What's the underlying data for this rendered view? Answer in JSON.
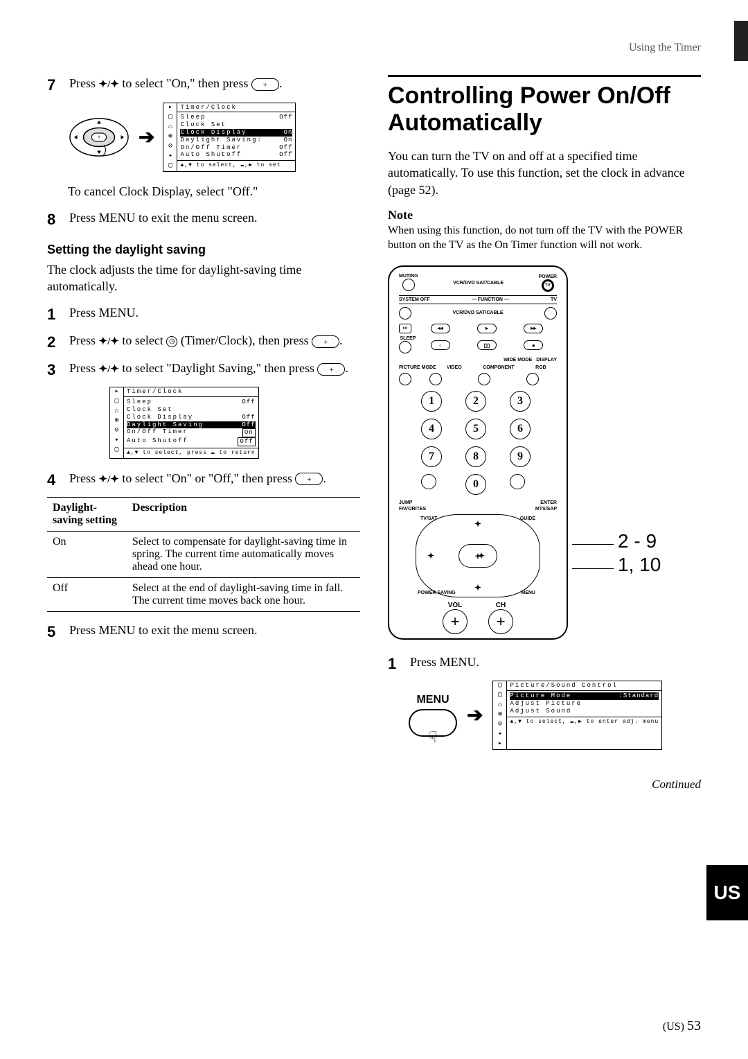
{
  "header": {
    "section": "Using the Timer"
  },
  "left": {
    "step7": {
      "num": "7",
      "text_a": "Press ",
      "text_b": " to select \"On,\" then press ",
      "text_c": "."
    },
    "menu1": {
      "title": "Timer/Clock",
      "rows": [
        {
          "k": "Sleep",
          "v": "Off",
          "hl": false
        },
        {
          "k": "Clock Set",
          "v": "",
          "hl": false
        },
        {
          "k": "Clock Display",
          "v": "On",
          "hl": true
        },
        {
          "k": "Daylight Saving:",
          "v": "On",
          "hl": false
        },
        {
          "k": "On/Off Timer",
          "v": "Off",
          "hl": false
        },
        {
          "k": "Auto Shutoff",
          "v": "Off",
          "hl": false
        }
      ],
      "foot": "▲,▼ to select, ▬,▶ to set"
    },
    "cancel_line": "To cancel Clock Display, select \"Off.\"",
    "step8": {
      "num": "8",
      "text": "Press MENU to exit the menu screen."
    },
    "dst_heading": "Setting the daylight saving",
    "dst_intro": "The clock adjusts the time for daylight-saving time automatically.",
    "dst_step1": {
      "num": "1",
      "text": "Press MENU."
    },
    "dst_step2": {
      "num": "2",
      "text_a": "Press ",
      "text_b": " to select ",
      "text_c": " (Timer/Clock), then press ",
      "text_d": "."
    },
    "dst_step3": {
      "num": "3",
      "text_a": "Press ",
      "text_b": " to select \"Daylight Saving,\" then press ",
      "text_c": "."
    },
    "menu2": {
      "title": "Timer/Clock",
      "rows": [
        {
          "k": "Sleep",
          "v": "Off",
          "hl": false
        },
        {
          "k": "Clock Set",
          "v": "",
          "hl": false
        },
        {
          "k": "Clock Display",
          "v": "Off",
          "hl": false
        },
        {
          "k": "Daylight Saving",
          "v": "Off",
          "hl": true
        },
        {
          "k": "On/Off Timer",
          "v": "On",
          "hl": false,
          "boxed": true
        },
        {
          "k": "Auto Shutoff",
          "v": "Off",
          "hl": false,
          "boxed": true
        }
      ],
      "foot": "▲,▼ to select, press ▬ to return"
    },
    "dst_step4": {
      "num": "4",
      "text_a": "Press ",
      "text_b": " to select \"On\" or \"Off,\" then press ",
      "text_c": "."
    },
    "table": {
      "h1": "Daylight-saving setting",
      "h2": "Description",
      "rows": [
        {
          "c1": "On",
          "c2": "Select to compensate for daylight-saving time in spring. The current time automatically moves ahead one hour."
        },
        {
          "c1": "Off",
          "c2": "Select at the end of daylight-saving time in fall. The current time moves back one hour."
        }
      ]
    },
    "dst_step5": {
      "num": "5",
      "text": "Press MENU to exit the menu screen."
    }
  },
  "right": {
    "h1": "Controlling Power On/Off Automatically",
    "intro": "You can turn the TV on and off at a specified time automatically. To use this function, set the clock in advance (page 52).",
    "note_h": "Note",
    "note_body": "When using this function, do not turn off the TV with the POWER button on the TV as the On Timer function will not work.",
    "remote": {
      "labels": {
        "muting": "MUTING",
        "power": "POWER",
        "vcrdvd": "VCR/DVD SAT/CABLE",
        "tv": "TV",
        "system_off": "SYSTEM OFF",
        "function": "FUNCTION",
        "cc": "cc",
        "sleep": "SLEEP",
        "wide": "WIDE MODE",
        "display": "DISPLAY",
        "picture_mode": "PICTURE MODE",
        "video": "VIDEO",
        "component": "COMPONENT",
        "rgb": "RGB",
        "jump": "JUMP",
        "enter": "ENTER",
        "favorites": "FAVORITES",
        "mts": "MTS/SAP",
        "tvsat": "TV/SAT",
        "guide": "GUIDE",
        "psaving": "POWER SAVING",
        "menu": "MENU",
        "vol": "VOL",
        "ch": "CH"
      },
      "keypad": [
        "1",
        "2",
        "3",
        "4",
        "5",
        "6",
        "7",
        "8",
        "9",
        "0"
      ]
    },
    "callouts": {
      "a": "2 - 9",
      "b": "1, 10"
    },
    "rstep1": {
      "num": "1",
      "text": "Press MENU."
    },
    "menu_label": "MENU",
    "menu3": {
      "title": "Picture/Sound Control",
      "rows": [
        {
          "k": "Picture Mode",
          "v": ":Standard",
          "hl": true
        },
        {
          "k": "Adjust Picture",
          "v": "",
          "hl": false
        },
        {
          "k": "Adjust Sound",
          "v": "",
          "hl": false
        }
      ],
      "foot": "▲,▼ to select, ▬,▶ to enter adj. menu"
    },
    "continued": "Continued",
    "us_tab": "US"
  },
  "footer": {
    "region": "(US)",
    "page": "53"
  }
}
